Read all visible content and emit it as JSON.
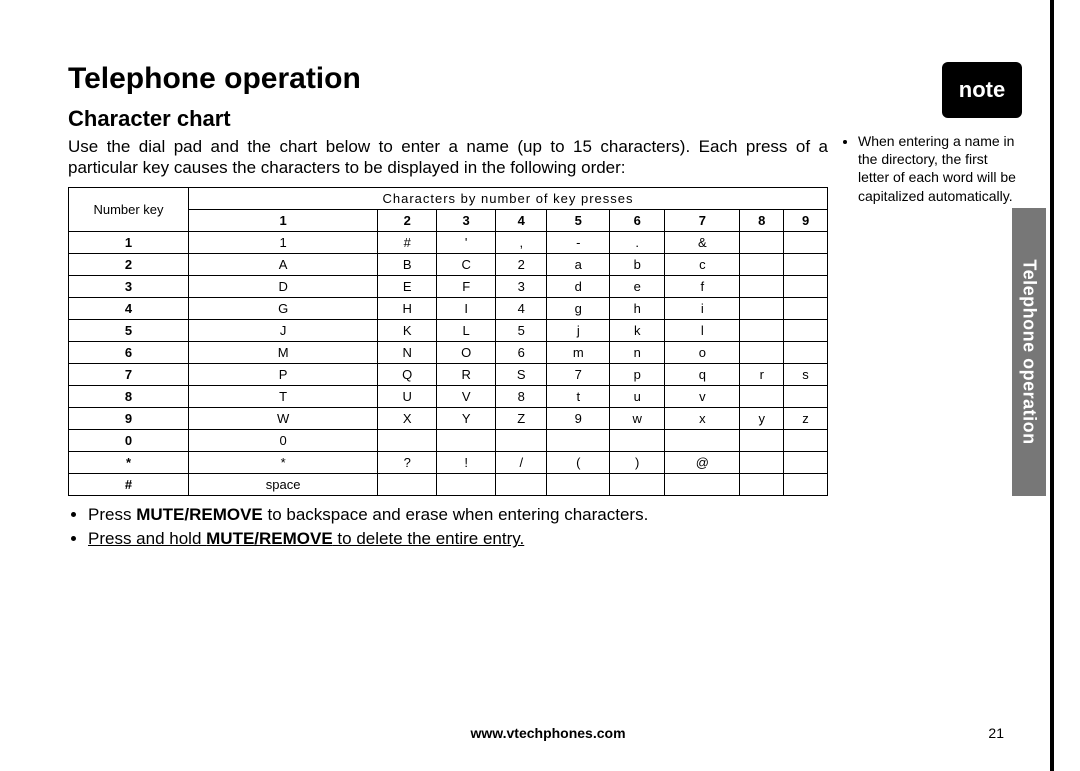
{
  "heading": "Telephone operation",
  "subheading": "Character chart",
  "intro": "Use the dial pad and the chart below to enter a name (up to 15 characters). Each press of a particular key causes the characters to be displayed in the following order:",
  "table": {
    "corner_label": "Number key",
    "super_header": "Characters by number of key presses",
    "col_headers": [
      "1",
      "2",
      "3",
      "4",
      "5",
      "6",
      "7",
      "8",
      "9"
    ],
    "rows": [
      {
        "key": "1",
        "cells": [
          "1",
          "#",
          "'",
          ",",
          "-",
          ".",
          "&",
          "",
          ""
        ]
      },
      {
        "key": "2",
        "cells": [
          "A",
          "B",
          "C",
          "2",
          "a",
          "b",
          "c",
          "",
          ""
        ]
      },
      {
        "key": "3",
        "cells": [
          "D",
          "E",
          "F",
          "3",
          "d",
          "e",
          "f",
          "",
          ""
        ]
      },
      {
        "key": "4",
        "cells": [
          "G",
          "H",
          "I",
          "4",
          "g",
          "h",
          "i",
          "",
          ""
        ]
      },
      {
        "key": "5",
        "cells": [
          "J",
          "K",
          "L",
          "5",
          "j",
          "k",
          "l",
          "",
          ""
        ]
      },
      {
        "key": "6",
        "cells": [
          "M",
          "N",
          "O",
          "6",
          "m",
          "n",
          "o",
          "",
          ""
        ]
      },
      {
        "key": "7",
        "cells": [
          "P",
          "Q",
          "R",
          "S",
          "7",
          "p",
          "q",
          "r",
          "s"
        ]
      },
      {
        "key": "8",
        "cells": [
          "T",
          "U",
          "V",
          "8",
          "t",
          "u",
          "v",
          "",
          ""
        ]
      },
      {
        "key": "9",
        "cells": [
          "W",
          "X",
          "Y",
          "Z",
          "9",
          "w",
          "x",
          "y",
          "z"
        ]
      },
      {
        "key": "0",
        "cells": [
          "0",
          "",
          "",
          "",
          "",
          "",
          "",
          "",
          ""
        ]
      },
      {
        "key": "*",
        "cells": [
          "*",
          "?",
          "!",
          "/",
          "(",
          ")",
          "@",
          "",
          ""
        ]
      },
      {
        "key": "#",
        "cells": [
          "space",
          "",
          "",
          "",
          "",
          "",
          "",
          "",
          ""
        ]
      }
    ]
  },
  "bullets": {
    "b1_pre": "Press ",
    "b1_bold": "MUTE/REMOVE",
    "b1_post": " to backspace and erase when entering characters.",
    "b2_pre": "Press and hold ",
    "b2_bold": "MUTE/REMOVE",
    "b2_post": " to delete the entire entry."
  },
  "note": {
    "badge": "note",
    "text": "When entering a name in the directory, the first letter of each word will be capitalized automatically."
  },
  "side_tab": "Telephone operation",
  "footer_url": "www.vtechphones.com",
  "page_number": "21"
}
